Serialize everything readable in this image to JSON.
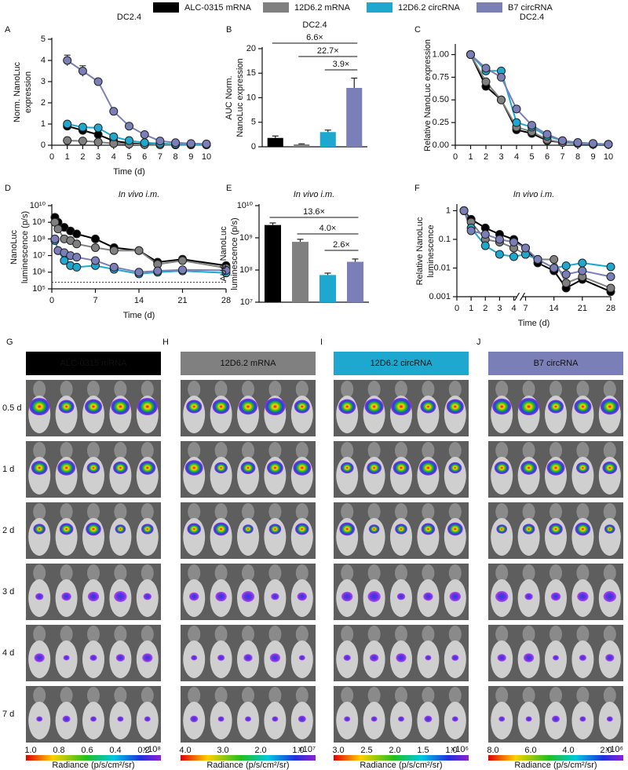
{
  "chart_data": [
    {
      "type": "line",
      "label": "A",
      "title": "DC2.4",
      "ylabel": [
        "Norm. NanoLuc",
        "expression"
      ],
      "xlabel": "Time (d)",
      "x": [
        1,
        2,
        3,
        4,
        5,
        6,
        7,
        8,
        9,
        10
      ],
      "xlim": [
        0,
        10
      ],
      "xticks": [
        0,
        1,
        2,
        3,
        4,
        5,
        6,
        7,
        8,
        9,
        10
      ],
      "ylim": [
        0,
        5
      ],
      "yticks": [
        0,
        1,
        2,
        3,
        4,
        5
      ],
      "series": [
        {
          "name": "ALC-0315 mRNA",
          "color": "#000000",
          "values": [
            0.9,
            0.7,
            0.5,
            0.2,
            0.1,
            0.05,
            0.03,
            0.02,
            0.02,
            0.02
          ]
        },
        {
          "name": "12D6.2 mRNA",
          "color": "#808080",
          "values": [
            0.22,
            0.2,
            0.15,
            0.08,
            0.05,
            0.03,
            0.02,
            0.02,
            0.02,
            0.02
          ]
        },
        {
          "name": "12D6.2 circRNA",
          "color": "#1ea8d0",
          "values": [
            1.0,
            0.85,
            0.82,
            0.4,
            0.22,
            0.12,
            0.08,
            0.05,
            0.04,
            0.03
          ]
        },
        {
          "name": "B7 circRNA",
          "color": "#7b7fb8",
          "values": [
            4.0,
            3.5,
            3.0,
            1.6,
            0.9,
            0.5,
            0.2,
            0.12,
            0.08,
            0.06
          ],
          "errors": [
            0.25,
            0.25,
            0.1,
            0.1,
            0.05,
            0.03,
            0.02,
            0.02,
            0.01,
            0.01
          ]
        }
      ]
    },
    {
      "type": "bar",
      "label": "B",
      "title": "DC2.4",
      "ylabel": [
        "AUC Norm.",
        "NanoLuc expression"
      ],
      "categories": [
        null,
        null,
        null,
        null
      ],
      "values": [
        1.8,
        0.5,
        3.0,
        12.0
      ],
      "errors": [
        0.4,
        0.1,
        0.4,
        2.0
      ],
      "colors": [
        "#000000",
        "#808080",
        "#1ea8d0",
        "#7b7fb8"
      ],
      "ylim": [
        0,
        20
      ],
      "yticks": [
        0,
        5,
        10,
        15,
        20
      ],
      "annotations": [
        "6.6×",
        "22.7×",
        "3.9×"
      ]
    },
    {
      "type": "line",
      "label": "C",
      "title": "DC2.4",
      "ylabel": [
        "Relative NanoLuc expression"
      ],
      "x": [
        1,
        2,
        3,
        4,
        5,
        6,
        7,
        8,
        9,
        10
      ],
      "xlim": [
        0,
        10
      ],
      "xticks": [
        0,
        1,
        2,
        3,
        4,
        5,
        6,
        7,
        8,
        9,
        10
      ],
      "ylim": [
        0,
        1.1
      ],
      "yticks": [
        {
          "value": 0,
          "label": "0.00"
        },
        {
          "value": 0.25,
          "label": "0.25"
        },
        {
          "value": 0.5,
          "label": "0.50"
        },
        {
          "value": 0.75,
          "label": "0.75"
        },
        {
          "value": 1,
          "label": "1.00"
        }
      ],
      "series": [
        {
          "color": "#000000",
          "values": [
            1,
            0.65,
            0.5,
            0.17,
            0.13,
            0.05,
            0.03,
            0.02,
            0.01,
            0.01
          ]
        },
        {
          "color": "#808080",
          "values": [
            1,
            0.7,
            0.5,
            0.2,
            0.15,
            0.06,
            0.03,
            0.02,
            0.01,
            0.01
          ]
        },
        {
          "color": "#1ea8d0",
          "values": [
            1,
            0.82,
            0.82,
            0.25,
            0.2,
            0.1,
            0.05,
            0.02,
            0.01,
            0.01
          ]
        },
        {
          "color": "#7b7fb8",
          "values": [
            1,
            0.85,
            0.75,
            0.4,
            0.22,
            0.12,
            0.05,
            0.03,
            0.02,
            0.01
          ]
        }
      ]
    },
    {
      "type": "line",
      "label": "D",
      "title": "In vivo i.m.",
      "title_style": "italic",
      "ylabel": [
        "NanoLuc",
        "luminescence (p/s)"
      ],
      "xlabel": "Time (d)",
      "log": true,
      "x": [
        0.5,
        1,
        2,
        3,
        4,
        7,
        10,
        14,
        17,
        21,
        28
      ],
      "xlim": [
        0,
        28
      ],
      "xticks": [
        0,
        7,
        14,
        21,
        28
      ],
      "ylim": [
        100000,
        10000000000
      ],
      "yticks": [
        {
          "value": 100000,
          "label": "10⁵"
        },
        {
          "value": 1000000,
          "label": "10⁶"
        },
        {
          "value": 10000000,
          "label": "10⁷"
        },
        {
          "value": 100000000,
          "label": "10⁸"
        },
        {
          "value": 1000000000,
          "label": "10⁹"
        },
        {
          "value": 10000000000,
          "label": "10¹⁰"
        }
      ],
      "threshold": 250000,
      "series": [
        {
          "color": "#000000",
          "values": [
            2000000000,
            1000000000,
            500000000,
            300000000,
            200000000,
            100000000,
            30000000,
            20000000,
            4000000,
            6000000,
            2500000
          ]
        },
        {
          "color": "#808080",
          "values": [
            1000000000,
            400000000,
            100000000,
            80000000,
            50000000,
            30000000,
            20000000,
            20000000,
            3000000,
            5000000,
            1800000
          ]
        },
        {
          "color": "#1ea8d0",
          "values": [
            80000000,
            20000000,
            5000000,
            2500000,
            2000000,
            2500000,
            1500000,
            800000,
            1000000,
            1200000,
            900000
          ]
        },
        {
          "color": "#7b7fb8",
          "values": [
            100000000,
            20000000,
            15000000,
            10000000,
            8000000,
            5000000,
            2000000,
            1000000,
            1200000,
            1400000,
            1300000
          ]
        }
      ]
    },
    {
      "type": "bar",
      "label": "E",
      "title": "In vivo i.m.",
      "title_style": "italic",
      "ylabel": [
        "AUC NanoLuc",
        "luminescence (p/s)"
      ],
      "log": true,
      "categories": [
        null,
        null,
        null,
        null
      ],
      "values": [
        2500000000,
        750000000,
        70000000,
        180000000
      ],
      "errors": [
        400000000,
        150000000,
        10000000,
        40000000
      ],
      "colors": [
        "#000000",
        "#808080",
        "#1ea8d0",
        "#7b7fb8"
      ],
      "ylim": [
        10000000,
        10000000000
      ],
      "yticks": [
        {
          "value": 10000000,
          "label": "10⁷"
        },
        {
          "value": 100000000,
          "label": "10⁸"
        },
        {
          "value": 1000000000,
          "label": "10⁹"
        },
        {
          "value": 10000000000,
          "label": "10¹⁰"
        }
      ],
      "annotations": [
        "13.6×",
        "4.0×",
        "2.6×"
      ]
    },
    {
      "type": "line",
      "label": "F",
      "title": "In vivo i.m.",
      "title_style": "italic",
      "ylabel": [
        "Relative NanoLuc",
        "luminescence"
      ],
      "xlabel": "Time (d)",
      "log": true,
      "x": [
        0.5,
        1,
        2,
        3,
        4,
        7,
        10,
        14,
        17,
        21,
        28
      ],
      "xlim": [
        0,
        28
      ],
      "xbreak": [
        4,
        7
      ],
      "xticks": [
        0,
        1,
        2,
        3,
        4,
        7,
        14,
        21,
        28
      ],
      "ylim": [
        0.001,
        1.5
      ],
      "yticks": [
        0.001,
        0.01,
        0.1,
        1
      ],
      "series": [
        {
          "color": "#000000",
          "values": [
            1,
            0.5,
            0.25,
            0.15,
            0.1,
            0.05,
            0.015,
            0.008,
            0.002,
            0.004,
            0.0015
          ]
        },
        {
          "color": "#808080",
          "values": [
            1,
            0.4,
            0.1,
            0.08,
            0.05,
            0.03,
            0.02,
            0.02,
            0.003,
            0.005,
            0.002
          ]
        },
        {
          "color": "#1ea8d0",
          "values": [
            1,
            0.25,
            0.06,
            0.03,
            0.025,
            0.03,
            0.02,
            0.01,
            0.012,
            0.015,
            0.011
          ]
        },
        {
          "color": "#7b7fb8",
          "values": [
            1,
            0.2,
            0.15,
            0.1,
            0.08,
            0.05,
            0.02,
            0.01,
            0.006,
            0.008,
            0.005
          ]
        }
      ]
    }
  ],
  "imaging": {
    "rows": [
      "0.5 d",
      "1 d",
      "2 d",
      "3 d",
      "4 d",
      "7 d"
    ],
    "colorbar_title": "Radiance (p/s/cm²/sr)",
    "panels": [
      {
        "label": "G",
        "header": "ALC-0315 mRNA",
        "header_color": "#000000",
        "header_text_color": "#ffffff",
        "colorbar_ticks": [
          "1.0",
          "0.8",
          "0.6",
          "0.4",
          "0.2"
        ],
        "colorbar_exponent": "×10⁸"
      },
      {
        "label": "H",
        "header": "12D6.2 mRNA",
        "header_color": "#808080",
        "header_text_color": "#ffffff",
        "colorbar_ticks": [
          "4.0",
          "3.0",
          "2.0",
          "1.0"
        ],
        "colorbar_exponent": "×10⁷"
      },
      {
        "label": "I",
        "header": "12D6.2 circRNA",
        "header_color": "#1ea8d0",
        "header_text_color": "#111111",
        "colorbar_ticks": [
          "3.0",
          "2.5",
          "2.0",
          "1.5",
          "1.0"
        ],
        "colorbar_exponent": "×10⁶"
      },
      {
        "label": "J",
        "header": "B7 circRNA",
        "header_color": "#7b7fb8",
        "header_text_color": "#111111",
        "colorbar_ticks": [
          "8.0",
          "6.0",
          "4.0",
          "2.0"
        ],
        "colorbar_exponent": "×10⁶"
      }
    ]
  }
}
